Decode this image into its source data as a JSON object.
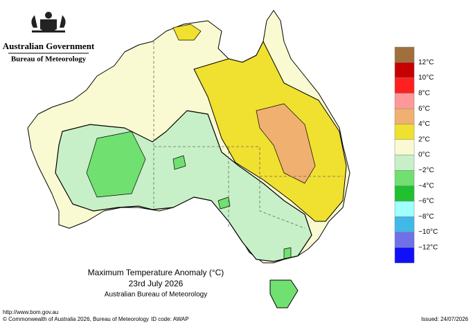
{
  "header": {
    "org": "Australian Government",
    "bureau": "Bureau of Meteorology"
  },
  "map": {
    "title": "Maximum Temperature Anomaly (°C)",
    "date": "23rd July 2026",
    "source": "Australian Bureau of Meteorology"
  },
  "legend": {
    "bands": [
      "#a0703c",
      "#c80000",
      "#ff2020",
      "#ff9898",
      "#f0b070",
      "#f0e030",
      "#fafad2",
      "#c8f0c8",
      "#70e070",
      "#20c030",
      "#a0ffff",
      "#40b8e8",
      "#7070e8",
      "#1010f8"
    ],
    "labels": [
      "12°C",
      "10°C",
      "8°C",
      "6°C",
      "4°C",
      "2°C",
      "0°C",
      "−2°C",
      "−4°C",
      "−6°C",
      "−8°C",
      "−10°C",
      "−12°C"
    ]
  },
  "footer": {
    "url": "http://www.bom.gov.au",
    "copyright": "© Commonwealth of Australia 2026, Bureau of Meteorology",
    "id_code": "ID code: AWAP",
    "issued": "Issued: 24/07/2026"
  }
}
